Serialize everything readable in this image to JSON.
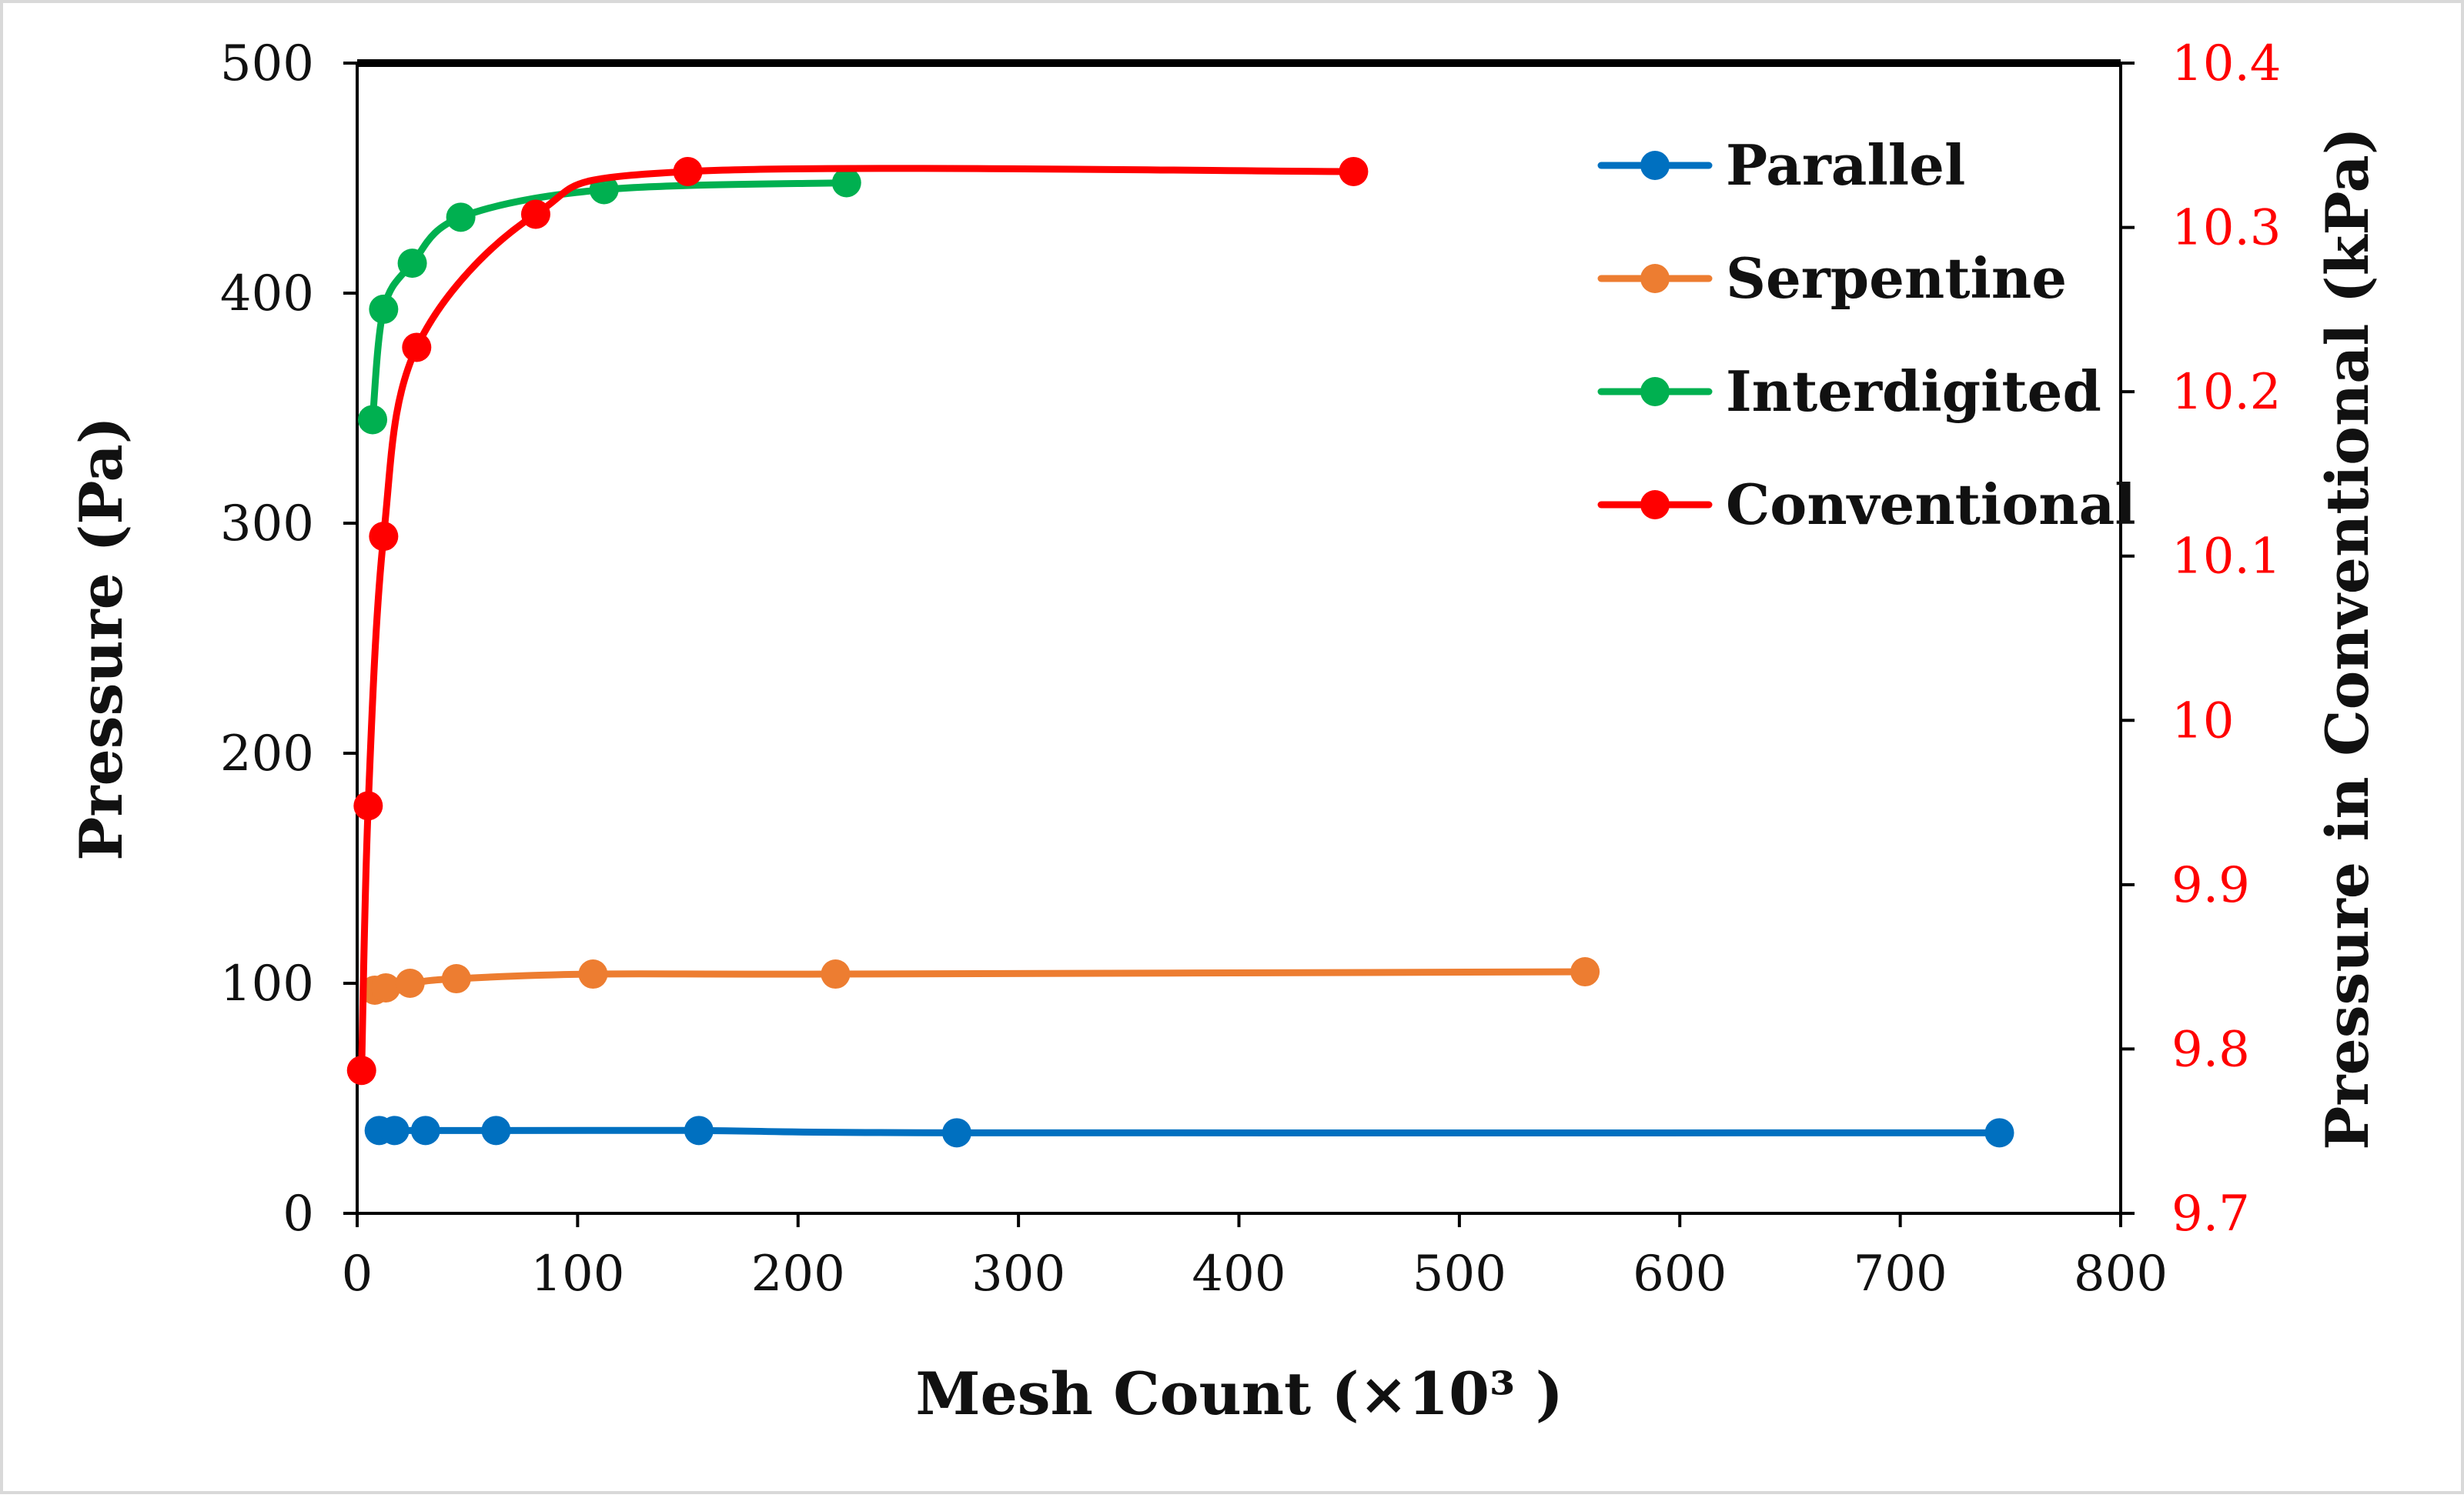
{
  "chart_data": {
    "type": "line",
    "title": "",
    "xlabel": "Mesh Count  (×10³ )",
    "ylabel": "Pressure (Pa)",
    "y2label": "Pressure in Conventional (kPa)",
    "xlim": [
      0,
      800
    ],
    "ylim": [
      0,
      500
    ],
    "y2lim": [
      9.7,
      10.4
    ],
    "x_ticks": [
      "0",
      "100",
      "200",
      "300",
      "400",
      "500",
      "600",
      "700",
      "800"
    ],
    "y_ticks": [
      "0",
      "100",
      "200",
      "300",
      "400",
      "500"
    ],
    "y2_ticks": [
      "9.7",
      "9.8",
      "9.9",
      "10",
      "10.1",
      "10.2",
      "10.3",
      "10.4"
    ],
    "legend_position": "top-right",
    "grid": false,
    "series": [
      {
        "name": "Parallel",
        "axis": "left",
        "color": "#0070c0",
        "x": [
          10,
          17,
          31,
          63,
          155,
          272,
          745
        ],
        "y": [
          36,
          36,
          36,
          36,
          36,
          35,
          35
        ]
      },
      {
        "name": "Serpentine",
        "axis": "left",
        "color": "#ed7d31",
        "x": [
          8,
          13,
          24,
          45,
          107,
          217,
          557
        ],
        "y": [
          97,
          98,
          100,
          102,
          104,
          104,
          105
        ]
      },
      {
        "name": "Interdigited",
        "axis": "left",
        "color": "#00b050",
        "x": [
          7,
          12,
          25,
          47,
          112,
          222
        ],
        "y": [
          345,
          393,
          413,
          433,
          445,
          448
        ]
      },
      {
        "name": "Conventional",
        "axis": "right",
        "color": "#ff0000",
        "x": [
          2,
          5,
          12,
          27,
          81,
          150,
          452
        ],
        "y": [
          9.787,
          9.948,
          10.112,
          10.227,
          10.308,
          10.334,
          10.334
        ]
      }
    ]
  }
}
